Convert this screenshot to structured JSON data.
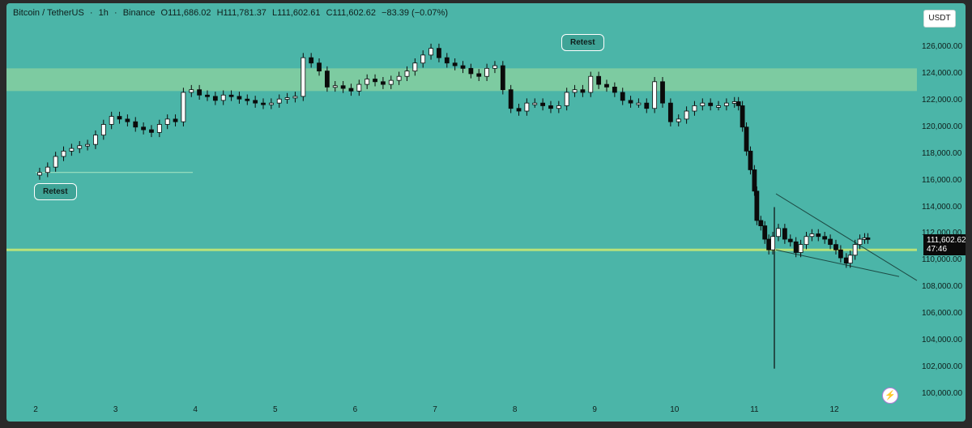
{
  "header": {
    "symbol": "Bitcoin / TetherUS",
    "interval": "1h",
    "exchange": "Binance",
    "open": "O111,686.02",
    "high": "H111,781.37",
    "low": "L111,602.61",
    "close": "C111,602.62",
    "change": "−83.39 (−0.07%)",
    "separator": "·"
  },
  "currency_button": "USDT",
  "current_price": {
    "price": "111,602.62",
    "countdown": "47:46"
  },
  "annotations": [
    {
      "text": "Retest"
    },
    {
      "text": "Retest"
    }
  ],
  "lightning_icon": "lightning-icon",
  "colors": {
    "background": "#4bb5a8",
    "zone": "#86cfa0",
    "support_line": "#b8e27a",
    "candle": "#0b0b0b",
    "candle_up_fill": "#ffffff"
  },
  "chart_data": {
    "type": "candlestick",
    "y_tick_labels": [
      "126,000.00",
      "124,000.00",
      "122,000.00",
      "120,000.00",
      "118,000.00",
      "116,000.00",
      "114,000.00",
      "112,000.00",
      "110,000.00",
      "108,000.00",
      "106,000.00",
      "104,000.00",
      "102,000.00",
      "100,000.00"
    ],
    "x_tick_labels": [
      "2",
      "3",
      "4",
      "5",
      "6",
      "7",
      "8",
      "9",
      "10",
      "11",
      "12"
    ],
    "ylim": [
      99500,
      127500
    ],
    "resistance_zone": [
      122700,
      124400
    ],
    "support_line": 110800,
    "minor_level": 116600,
    "close_path": [
      [
        1.98,
        116.4
      ],
      [
        2.05,
        116.6
      ],
      [
        2.15,
        117.0
      ],
      [
        2.25,
        117.8
      ],
      [
        2.35,
        118.2
      ],
      [
        2.45,
        118.4
      ],
      [
        2.55,
        118.6
      ],
      [
        2.65,
        118.7
      ],
      [
        2.75,
        119.4
      ],
      [
        2.85,
        120.2
      ],
      [
        2.95,
        120.8
      ],
      [
        3.05,
        120.6
      ],
      [
        3.15,
        120.4
      ],
      [
        3.25,
        120.0
      ],
      [
        3.35,
        119.8
      ],
      [
        3.45,
        119.6
      ],
      [
        3.55,
        120.2
      ],
      [
        3.65,
        120.6
      ],
      [
        3.75,
        120.4
      ],
      [
        3.85,
        122.6
      ],
      [
        3.95,
        122.8
      ],
      [
        4.05,
        122.4
      ],
      [
        4.15,
        122.3
      ],
      [
        4.25,
        122.0
      ],
      [
        4.35,
        122.4
      ],
      [
        4.45,
        122.3
      ],
      [
        4.55,
        122.1
      ],
      [
        4.65,
        122.0
      ],
      [
        4.75,
        121.8
      ],
      [
        4.85,
        121.7
      ],
      [
        4.95,
        121.8
      ],
      [
        5.05,
        122.1
      ],
      [
        5.15,
        122.2
      ],
      [
        5.25,
        122.3
      ],
      [
        5.35,
        125.2
      ],
      [
        5.45,
        124.8
      ],
      [
        5.55,
        124.2
      ],
      [
        5.65,
        123.0
      ],
      [
        5.75,
        123.1
      ],
      [
        5.85,
        122.9
      ],
      [
        5.95,
        122.7
      ],
      [
        6.05,
        123.2
      ],
      [
        6.15,
        123.6
      ],
      [
        6.25,
        123.4
      ],
      [
        6.35,
        123.2
      ],
      [
        6.45,
        123.5
      ],
      [
        6.55,
        123.8
      ],
      [
        6.65,
        124.2
      ],
      [
        6.75,
        124.8
      ],
      [
        6.85,
        125.4
      ],
      [
        6.95,
        125.9
      ],
      [
        7.05,
        125.2
      ],
      [
        7.15,
        124.8
      ],
      [
        7.25,
        124.6
      ],
      [
        7.35,
        124.4
      ],
      [
        7.45,
        124.0
      ],
      [
        7.55,
        123.8
      ],
      [
        7.65,
        124.4
      ],
      [
        7.75,
        124.6
      ],
      [
        7.85,
        122.8
      ],
      [
        7.95,
        121.4
      ],
      [
        8.05,
        121.2
      ],
      [
        8.15,
        121.8
      ],
      [
        8.25,
        121.8
      ],
      [
        8.35,
        121.6
      ],
      [
        8.45,
        121.4
      ],
      [
        8.55,
        121.6
      ],
      [
        8.65,
        122.6
      ],
      [
        8.75,
        122.8
      ],
      [
        8.85,
        122.6
      ],
      [
        8.95,
        123.8
      ],
      [
        9.05,
        123.2
      ],
      [
        9.15,
        123.0
      ],
      [
        9.25,
        122.6
      ],
      [
        9.35,
        122.0
      ],
      [
        9.45,
        121.8
      ],
      [
        9.55,
        121.8
      ],
      [
        9.65,
        121.4
      ],
      [
        9.75,
        123.4
      ],
      [
        9.85,
        121.8
      ],
      [
        9.95,
        120.4
      ],
      [
        10.05,
        120.6
      ],
      [
        10.15,
        121.2
      ],
      [
        10.25,
        121.6
      ],
      [
        10.35,
        121.8
      ],
      [
        10.45,
        121.6
      ],
      [
        10.55,
        121.6
      ],
      [
        10.65,
        121.8
      ],
      [
        10.75,
        121.9
      ],
      [
        10.8,
        121.6
      ],
      [
        10.85,
        120.0
      ],
      [
        10.9,
        118.2
      ],
      [
        10.95,
        116.8
      ],
      [
        11.0,
        115.2
      ],
      [
        11.03,
        113.0
      ],
      [
        11.08,
        112.6
      ],
      [
        11.13,
        111.6
      ],
      [
        11.18,
        110.8
      ],
      [
        11.23,
        111.8
      ],
      [
        11.3,
        112.4
      ],
      [
        11.38,
        111.6
      ],
      [
        11.45,
        111.4
      ],
      [
        11.52,
        110.6
      ],
      [
        11.58,
        111.2
      ],
      [
        11.65,
        111.8
      ],
      [
        11.72,
        112.0
      ],
      [
        11.8,
        111.8
      ],
      [
        11.88,
        111.6
      ],
      [
        11.95,
        111.2
      ],
      [
        12.02,
        110.8
      ],
      [
        12.08,
        110.2
      ],
      [
        12.15,
        109.8
      ],
      [
        12.2,
        110.4
      ],
      [
        12.26,
        111.2
      ],
      [
        12.32,
        111.6
      ],
      [
        12.38,
        111.7
      ],
      [
        12.42,
        111.6
      ]
    ]
  }
}
